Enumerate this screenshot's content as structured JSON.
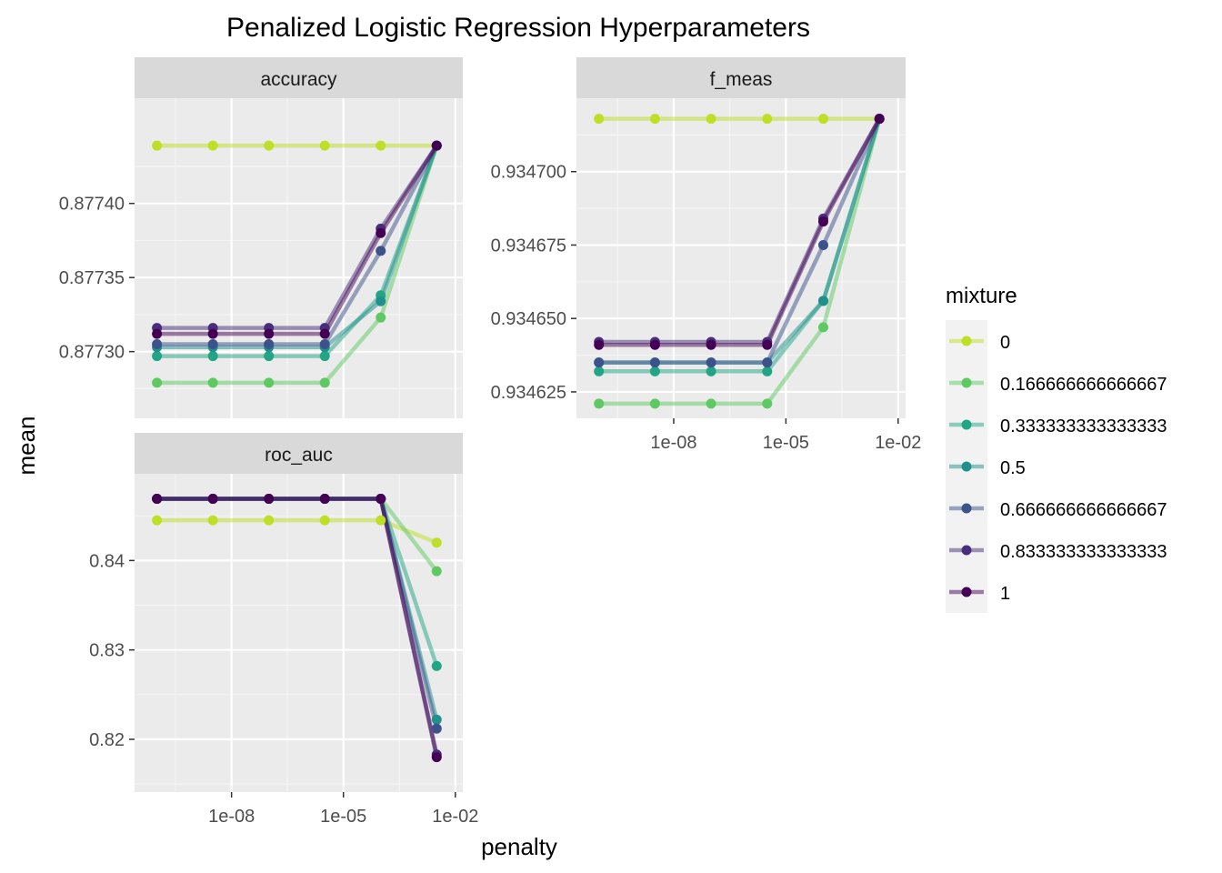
{
  "chart_data": {
    "type": "line",
    "title": "Penalized Logistic Regression Hyperparameters",
    "xlabel": "penalty",
    "ylabel": "mean",
    "legend": {
      "title": "mixture",
      "placement": "right",
      "entries": [
        {
          "label": "0",
          "color": "#bddf26"
        },
        {
          "label": "0.166666666666667",
          "color": "#5ec962"
        },
        {
          "label": "0.333333333333333",
          "color": "#21a585"
        },
        {
          "label": "0.5",
          "color": "#21908d"
        },
        {
          "label": "0.666666666666667",
          "color": "#3b528b"
        },
        {
          "label": "0.833333333333333",
          "color": "#472d7b"
        },
        {
          "label": "1",
          "color": "#440154"
        }
      ]
    },
    "x_scale": "log10",
    "x_values_log10": [
      -10,
      -8.5,
      -7,
      -5.5,
      -4,
      -2.5
    ],
    "x_ticks": [
      {
        "value": -8,
        "label": "1e-08"
      },
      {
        "value": -5,
        "label": "1e-05"
      },
      {
        "value": -2,
        "label": "1e-02"
      }
    ],
    "panels": [
      {
        "strip": "accuracy",
        "ylim": [
          0.877255,
          0.877471
        ],
        "y_ticks": [
          {
            "value": 0.8773,
            "label": "0.87730"
          },
          {
            "value": 0.87735,
            "label": "0.87735"
          },
          {
            "value": 0.8774,
            "label": "0.87740"
          }
        ],
        "series": [
          {
            "mixture": "0",
            "values": [
              0.877439,
              0.877439,
              0.877439,
              0.877439,
              0.877439,
              0.877439
            ]
          },
          {
            "mixture": "0.166666666666667",
            "values": [
              0.877279,
              0.877279,
              0.877279,
              0.877279,
              0.877323,
              0.877439
            ]
          },
          {
            "mixture": "0.333333333333333",
            "values": [
              0.877297,
              0.877297,
              0.877297,
              0.877297,
              0.877338,
              0.877439
            ]
          },
          {
            "mixture": "0.5",
            "values": [
              0.877303,
              0.877303,
              0.877303,
              0.877303,
              0.877334,
              0.877439
            ]
          },
          {
            "mixture": "0.666666666666667",
            "values": [
              0.877305,
              0.877305,
              0.877305,
              0.877305,
              0.877368,
              0.877439
            ]
          },
          {
            "mixture": "0.833333333333333",
            "values": [
              0.877316,
              0.877316,
              0.877316,
              0.877316,
              0.877383,
              0.877439
            ]
          },
          {
            "mixture": "1",
            "values": [
              0.877312,
              0.877312,
              0.877312,
              0.877312,
              0.87738,
              0.877439
            ]
          }
        ]
      },
      {
        "strip": "f_meas",
        "ylim": [
          0.934616,
          0.934725
        ],
        "y_ticks": [
          {
            "value": 0.934625,
            "label": "0.934625"
          },
          {
            "value": 0.93465,
            "label": "0.934650"
          },
          {
            "value": 0.934675,
            "label": "0.934675"
          },
          {
            "value": 0.9347,
            "label": "0.934700"
          }
        ],
        "series": [
          {
            "mixture": "0",
            "values": [
              0.934718,
              0.934718,
              0.934718,
              0.934718,
              0.934718,
              0.934718
            ]
          },
          {
            "mixture": "0.166666666666667",
            "values": [
              0.934621,
              0.934621,
              0.934621,
              0.934621,
              0.934647,
              0.934718
            ]
          },
          {
            "mixture": "0.333333333333333",
            "values": [
              0.934632,
              0.934632,
              0.934632,
              0.934632,
              0.934656,
              0.934718
            ]
          },
          {
            "mixture": "0.5",
            "values": [
              0.934635,
              0.934635,
              0.934635,
              0.934635,
              0.934656,
              0.934718
            ]
          },
          {
            "mixture": "0.666666666666667",
            "values": [
              0.934635,
              0.934635,
              0.934635,
              0.934635,
              0.934675,
              0.934718
            ]
          },
          {
            "mixture": "0.833333333333333",
            "values": [
              0.934642,
              0.934642,
              0.934642,
              0.934642,
              0.934684,
              0.934718
            ]
          },
          {
            "mixture": "1",
            "values": [
              0.934641,
              0.934641,
              0.934641,
              0.934641,
              0.934683,
              0.934718
            ]
          }
        ]
      },
      {
        "strip": "roc_auc",
        "ylim": [
          0.8141,
          0.8497
        ],
        "y_ticks": [
          {
            "value": 0.82,
            "label": "0.82"
          },
          {
            "value": 0.83,
            "label": "0.83"
          },
          {
            "value": 0.84,
            "label": "0.84"
          }
        ],
        "series": [
          {
            "mixture": "0",
            "values": [
              0.8445,
              0.8445,
              0.8445,
              0.8445,
              0.8445,
              0.842
            ]
          },
          {
            "mixture": "0.166666666666667",
            "values": [
              0.8469,
              0.8469,
              0.8469,
              0.8469,
              0.8469,
              0.8388
            ]
          },
          {
            "mixture": "0.333333333333333",
            "values": [
              0.8469,
              0.8469,
              0.8469,
              0.8469,
              0.8469,
              0.8282
            ]
          },
          {
            "mixture": "0.5",
            "values": [
              0.8469,
              0.8469,
              0.8469,
              0.8469,
              0.8469,
              0.8222
            ]
          },
          {
            "mixture": "0.666666666666667",
            "values": [
              0.8469,
              0.8469,
              0.8469,
              0.8469,
              0.8469,
              0.8212
            ]
          },
          {
            "mixture": "0.833333333333333",
            "values": [
              0.8469,
              0.8469,
              0.8469,
              0.8469,
              0.8469,
              0.8183
            ]
          },
          {
            "mixture": "1",
            "values": [
              0.8469,
              0.8469,
              0.8469,
              0.8469,
              0.8469,
              0.818
            ]
          }
        ]
      }
    ]
  }
}
